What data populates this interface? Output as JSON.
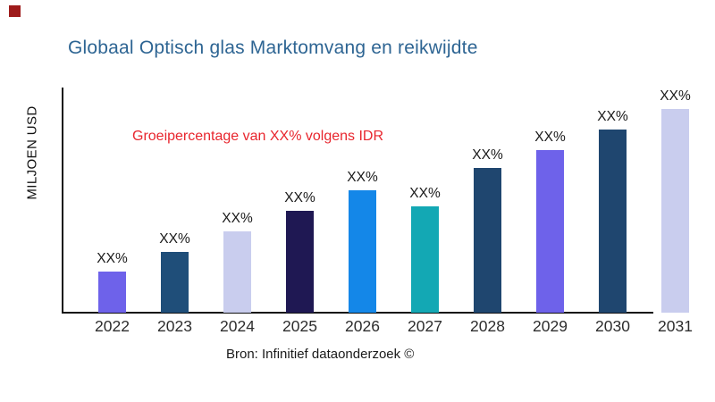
{
  "page": {
    "title": "Globaal Optisch glas Marktomvang en reikwijdte",
    "annotation": "Groeipercentage van XX% volgens IDR",
    "y_axis_label": "MILJOEN USD",
    "source": "Bron: Infinitief dataonderzoek ©"
  },
  "colors": {
    "title": "#2E6593",
    "annotation": "#E8262E",
    "axis": "#111111",
    "brand_mark": "#9E1B1B",
    "bar_label": "#1A1A1A"
  },
  "chart_data": {
    "type": "bar",
    "title": "Globaal Optisch glas Marktomvang en reikwijdte",
    "xlabel": "",
    "ylabel": "MILJOEN USD",
    "categories": [
      "2022",
      "2023",
      "2024",
      "2025",
      "2026",
      "2027",
      "2028",
      "2029",
      "2030",
      "2031"
    ],
    "values": [
      20,
      30,
      40,
      50,
      60,
      52,
      71,
      80,
      90,
      100
    ],
    "value_note": "relative size estimated from bar heights; chart shows placeholder percentages",
    "bar_labels": [
      "XX%",
      "XX%",
      "XX%",
      "XX%",
      "XX%",
      "XX%",
      "XX%",
      "XX%",
      "XX%",
      "XX%"
    ],
    "bar_colors": [
      "#6E62EA",
      "#1F4E79",
      "#C9CDEE",
      "#1F1853",
      "#1487E8",
      "#13A8B4",
      "#1F466F",
      "#6E62EA",
      "#1F466F",
      "#C9CDEE"
    ],
    "annotation": "Groeipercentage van XX% volgens IDR",
    "source": "Bron: Infinitief dataonderzoek ©",
    "ylim": [
      0,
      110
    ],
    "grid": false,
    "legend": false
  }
}
